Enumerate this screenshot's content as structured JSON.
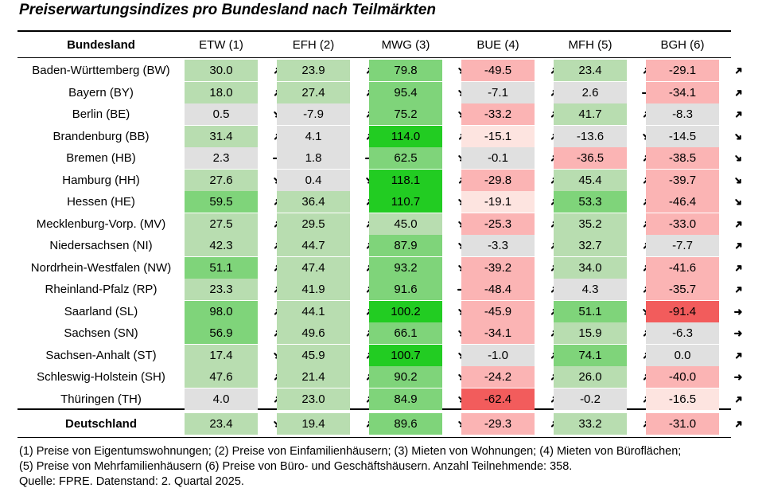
{
  "title": "Preiserwartungsindizes pro Bundesland nach Teilmärkten",
  "chart_data": {
    "type": "table",
    "row_header": "Bundesland",
    "columns": [
      "ETW (1)",
      "EFH (2)",
      "MWG (3)",
      "BUE (4)",
      "MFH (5)",
      "BGH (6)"
    ],
    "rows": [
      {
        "label": "Baden-Württemberg (BW)",
        "values": [
          "30.0",
          "23.9",
          "79.8",
          "-49.5",
          "23.4",
          "-29.1"
        ],
        "trends": [
          "up",
          "up",
          "down",
          "up",
          "up",
          "up"
        ]
      },
      {
        "label": "Bayern (BY)",
        "values": [
          "18.0",
          "27.4",
          "95.4",
          "-7.1",
          "2.6",
          "-34.1"
        ],
        "trends": [
          "up",
          "up",
          "down",
          "up",
          "flat",
          "up"
        ]
      },
      {
        "label": "Berlin (BE)",
        "values": [
          "0.5",
          "-7.9",
          "75.2",
          "-33.2",
          "41.7",
          "-8.3"
        ],
        "trends": [
          "down",
          "up",
          "down",
          "up",
          "up",
          "up"
        ]
      },
      {
        "label": "Brandenburg (BB)",
        "values": [
          "31.4",
          "4.1",
          "114.0",
          "-15.1",
          "-13.6",
          "-14.5"
        ],
        "trends": [
          "up",
          "up",
          "up",
          "up",
          "down",
          "down"
        ]
      },
      {
        "label": "Bremen (HB)",
        "values": [
          "2.3",
          "1.8",
          "62.5",
          "-0.1",
          "-36.5",
          "-38.5"
        ],
        "trends": [
          "flat",
          "flat",
          "down",
          "up",
          "up",
          "down"
        ]
      },
      {
        "label": "Hamburg (HH)",
        "values": [
          "27.6",
          "0.4",
          "118.1",
          "-29.8",
          "45.4",
          "-39.7"
        ],
        "trends": [
          "down",
          "down",
          "up",
          "up",
          "up",
          "down"
        ]
      },
      {
        "label": "Hessen (HE)",
        "values": [
          "59.5",
          "36.4",
          "110.7",
          "-19.1",
          "53.3",
          "-46.4"
        ],
        "trends": [
          "up",
          "up",
          "down",
          "up",
          "up",
          "down"
        ]
      },
      {
        "label": "Mecklenburg-Vorp. (MV)",
        "values": [
          "27.5",
          "29.5",
          "45.0",
          "-25.3",
          "35.2",
          "-33.0"
        ],
        "trends": [
          "up",
          "up",
          "down",
          "up",
          "up",
          "up"
        ]
      },
      {
        "label": "Niedersachsen (NI)",
        "values": [
          "42.3",
          "44.7",
          "87.9",
          "-3.3",
          "32.7",
          "-7.7"
        ],
        "trends": [
          "up",
          "up",
          "down",
          "up",
          "up",
          "up"
        ]
      },
      {
        "label": "Nordrhein-Westfalen (NW)",
        "values": [
          "51.1",
          "47.4",
          "93.2",
          "-39.2",
          "34.0",
          "-41.6"
        ],
        "trends": [
          "up",
          "up",
          "down",
          "up",
          "up",
          "up"
        ]
      },
      {
        "label": "Rheinland-Pfalz (RP)",
        "values": [
          "23.3",
          "41.9",
          "91.6",
          "-48.4",
          "4.3",
          "-35.7"
        ],
        "trends": [
          "up",
          "up",
          "flat",
          "up",
          "up",
          "up"
        ]
      },
      {
        "label": "Saarland (SL)",
        "values": [
          "98.0",
          "44.1",
          "100.2",
          "-45.9",
          "51.1",
          "-91.4"
        ],
        "trends": [
          "up",
          "up",
          "down",
          "up",
          "down",
          "flat"
        ]
      },
      {
        "label": "Sachsen (SN)",
        "values": [
          "56.9",
          "49.6",
          "66.1",
          "-34.1",
          "15.9",
          "-6.3"
        ],
        "trends": [
          "up",
          "up",
          "down",
          "up",
          "up",
          "flat"
        ]
      },
      {
        "label": "Sachsen-Anhalt (ST)",
        "values": [
          "17.4",
          "45.9",
          "100.7",
          "-1.0",
          "74.1",
          "0.0"
        ],
        "trends": [
          "down",
          "up",
          "down",
          "up",
          "up",
          "up"
        ]
      },
      {
        "label": "Schleswig-Holstein (SH)",
        "values": [
          "47.6",
          "21.4",
          "90.2",
          "-24.2",
          "26.0",
          "-40.0"
        ],
        "trends": [
          "up",
          "up",
          "down",
          "up",
          "up",
          "flat"
        ]
      },
      {
        "label": "Thüringen (TH)",
        "values": [
          "4.0",
          "23.0",
          "84.9",
          "-62.4",
          "-0.2",
          "-16.5"
        ],
        "trends": [
          "up",
          "up",
          "down",
          "up",
          "up",
          "up"
        ]
      }
    ],
    "total": {
      "label": "Deutschland",
      "values": [
        "23.4",
        "19.4",
        "89.6",
        "-29.3",
        "33.2",
        "-31.0"
      ],
      "trends": [
        "down",
        "up",
        "down",
        "up",
        "up",
        "up"
      ]
    },
    "colors": {
      "neutral": "#e0e0e0",
      "green_light": "#b8ddb0",
      "green_mid": "#7fd47a",
      "green_strong": "#22cc22",
      "red_light": "#fde4e0",
      "red_mid": "#fbb4b4",
      "red_strong": "#f25c5c"
    }
  },
  "footnotes": [
    "(1) Preise von Eigentumswohnungen; (2) Preise von Einfamilienhäusern; (3) Mieten von Wohnungen; (4) Mieten von Büroflächen;",
    "(5) Preise von Mehrfamilienhäusern (6) Preise von Büro- und Geschäftshäusern. Anzahl Teilnehmende: 358.",
    "Quelle: FPRE. Datenstand: 2. Quartal 2025."
  ]
}
